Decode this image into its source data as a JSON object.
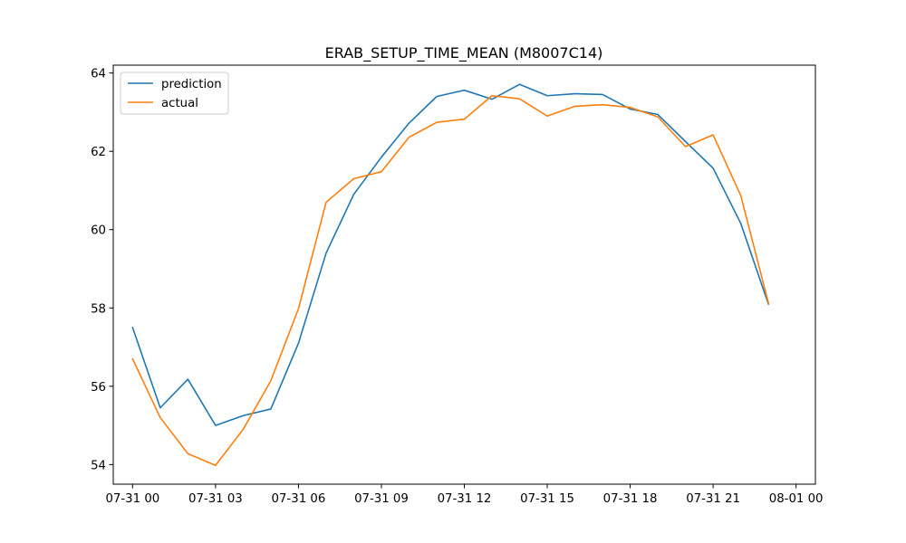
{
  "chart_data": {
    "type": "line",
    "title": "ERAB_SETUP_TIME_MEAN (M8007C14)",
    "xlabel": "",
    "ylabel": "",
    "x": [
      "07-31 00:00",
      "07-31 01:00",
      "07-31 02:00",
      "07-31 03:00",
      "07-31 04:00",
      "07-31 05:00",
      "07-31 06:00",
      "07-31 07:00",
      "07-31 08:00",
      "07-31 09:00",
      "07-31 10:00",
      "07-31 11:00",
      "07-31 12:00",
      "07-31 13:00",
      "07-31 14:00",
      "07-31 15:00",
      "07-31 16:00",
      "07-31 17:00",
      "07-31 18:00",
      "07-31 19:00",
      "07-31 20:00",
      "07-31 21:00",
      "07-31 22:00",
      "07-31 23:00"
    ],
    "x_ticks": [
      "07-31 00",
      "07-31 03",
      "07-31 06",
      "07-31 09",
      "07-31 12",
      "07-31 15",
      "07-31 18",
      "07-31 21",
      "08-01 00"
    ],
    "xlim": [
      "07-30 23:18",
      "08-01 00:42"
    ],
    "ylim": [
      53.5,
      64.2
    ],
    "y_ticks": [
      54,
      56,
      58,
      60,
      62,
      64
    ],
    "grid": false,
    "legend_position": "top-left",
    "series": [
      {
        "name": "prediction",
        "color": "#1f77b4",
        "values": [
          57.5,
          55.45,
          56.18,
          55.0,
          55.25,
          55.42,
          57.1,
          59.4,
          60.9,
          61.85,
          62.72,
          63.4,
          63.56,
          63.33,
          63.71,
          63.42,
          63.47,
          63.45,
          63.08,
          62.94,
          62.25,
          61.57,
          60.16,
          58.1
        ]
      },
      {
        "name": "actual",
        "color": "#ff7f0e",
        "values": [
          56.7,
          55.2,
          54.28,
          53.98,
          54.9,
          56.14,
          57.98,
          60.7,
          61.3,
          61.48,
          62.36,
          62.74,
          62.82,
          63.42,
          63.34,
          62.9,
          63.15,
          63.19,
          63.12,
          62.88,
          62.12,
          62.42,
          60.87,
          58.13
        ]
      }
    ]
  }
}
